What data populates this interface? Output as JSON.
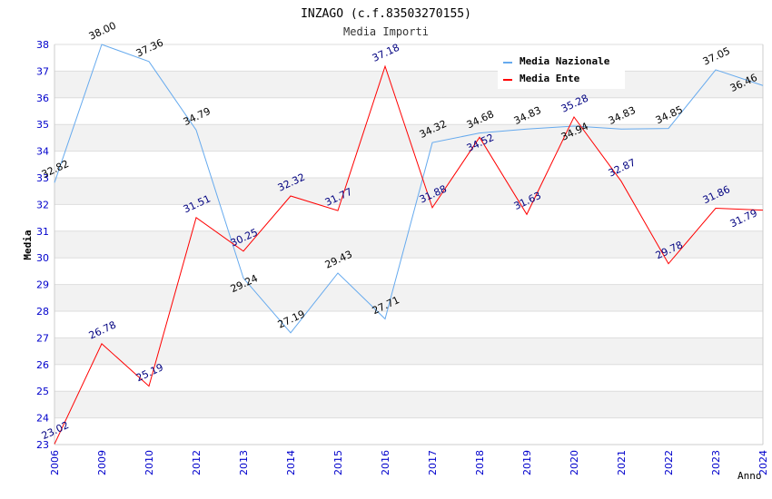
{
  "chart_data": {
    "type": "line",
    "title": "INZAGO (c.f.83503270155)",
    "subtitle": "Media Importi",
    "xlabel": "Anno",
    "ylabel": "Media",
    "ylim": [
      23,
      38
    ],
    "yticks": [
      "23",
      "24",
      "25",
      "26",
      "27",
      "28",
      "29",
      "30",
      "31",
      "32",
      "33",
      "34",
      "35",
      "36",
      "37",
      "38"
    ],
    "categories": [
      "2006",
      "2009",
      "2010",
      "2012",
      "2013",
      "2014",
      "2015",
      "2016",
      "2017",
      "2018",
      "2019",
      "2020",
      "2021",
      "2022",
      "2023",
      "2024"
    ],
    "series": [
      {
        "name": "Media Nazionale",
        "color": "#66aaee",
        "label_color": "#000000",
        "values": [
          32.82,
          38.0,
          37.36,
          34.79,
          29.24,
          27.19,
          29.43,
          27.71,
          34.32,
          34.68,
          34.83,
          34.94,
          34.83,
          34.85,
          37.05,
          36.46
        ],
        "labels": [
          "32.82",
          "38.00",
          "37.36",
          "34.79",
          "29.24",
          "27.19",
          "29.43",
          "27.71",
          "34.32",
          "34.68",
          "34.83",
          "34.94",
          "34.83",
          "34.85",
          "37.05",
          "36.46"
        ]
      },
      {
        "name": "Media Ente",
        "color": "#ff0000",
        "label_color": "#000080",
        "values": [
          23.02,
          26.78,
          25.19,
          31.51,
          30.25,
          32.32,
          31.77,
          37.18,
          31.88,
          34.52,
          31.63,
          35.28,
          32.87,
          29.78,
          31.86,
          31.79
        ],
        "labels": [
          "23.02",
          "26.78",
          "25.19",
          "31.51",
          "30.25",
          "32.32",
          "31.77",
          "37.18",
          "31.88",
          "34.52",
          "31.63",
          "35.28",
          "32.87",
          "29.78",
          "31.86",
          "31.79"
        ]
      }
    ],
    "grid": true,
    "legend_position": "top-right"
  }
}
